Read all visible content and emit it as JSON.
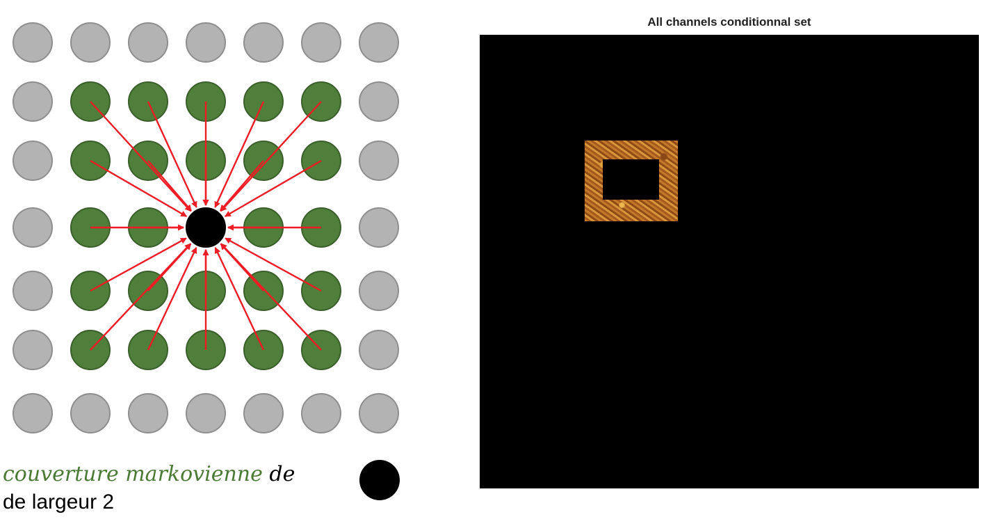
{
  "diagram": {
    "caption": {
      "line1_term": "couverture markovienne",
      "line1_suffix": " de",
      "line2": "de largeur 2"
    },
    "colors": {
      "outer_node": "#b3b3b3",
      "blanket_node": "#4f7f3a",
      "center_node": "#000000",
      "arrow": "#ee1c24"
    },
    "grid": {
      "rows": 7,
      "cols": 7,
      "blanket_width": 2
    }
  },
  "figure": {
    "title": "All channels conditionnal set",
    "panel_background": "#000000",
    "frame_color": "#b86a24"
  }
}
